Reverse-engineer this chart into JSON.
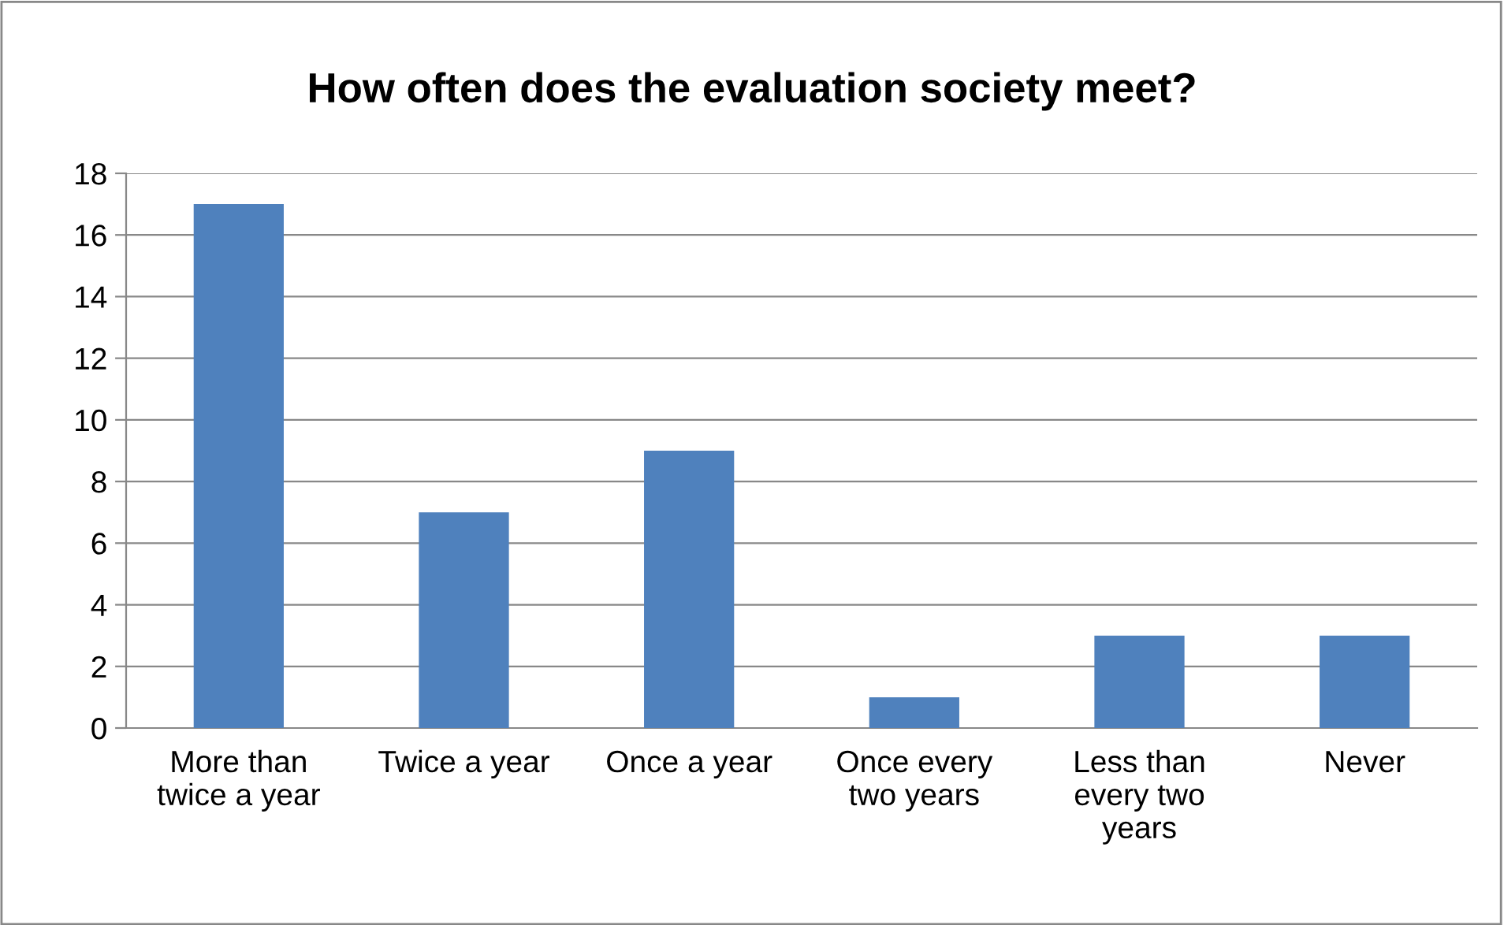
{
  "chart_data": {
    "type": "bar",
    "title": "How often does the evaluation society meet?",
    "categories": [
      "More than twice a year",
      "Twice a year",
      "Once a year",
      "Once every two years",
      "Less than every two years",
      "Never"
    ],
    "values": [
      17,
      7,
      9,
      1,
      3,
      3
    ],
    "color": "#4f81bd",
    "ylim": [
      0,
      18
    ],
    "yticks": [
      0,
      2,
      4,
      6,
      8,
      10,
      12,
      14,
      16,
      18
    ],
    "grid": "y",
    "legend": false
  }
}
